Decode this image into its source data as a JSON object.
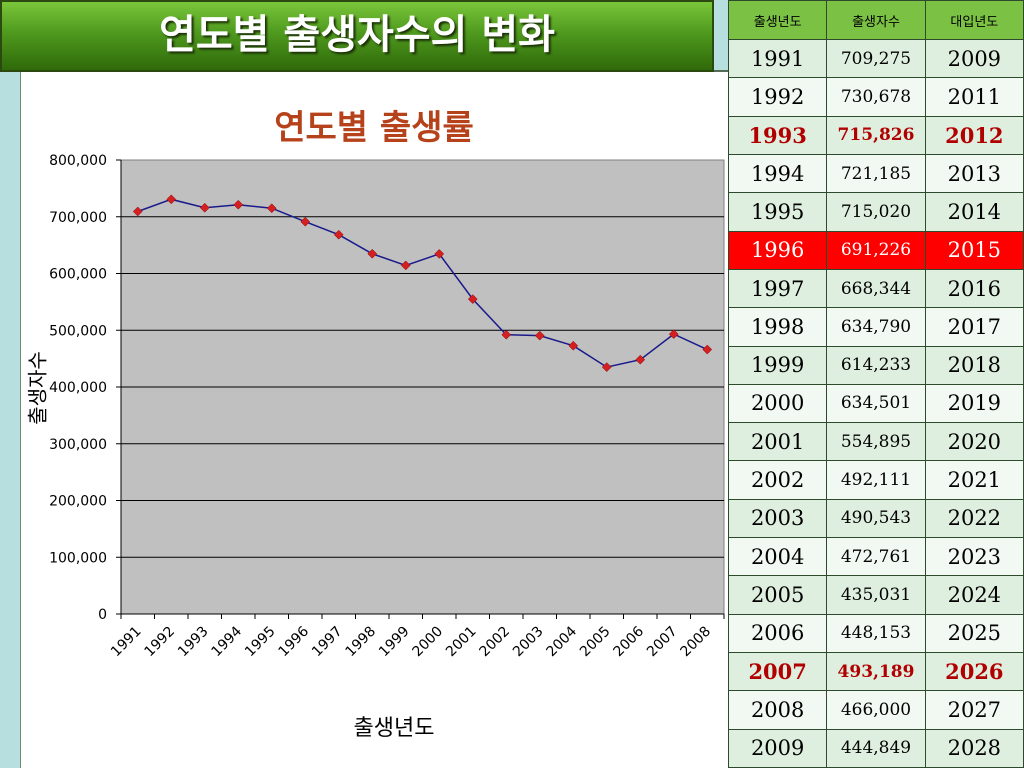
{
  "slide": {
    "title": "연도별 출생자수의 변화"
  },
  "chart_data": {
    "type": "line",
    "title": "연도별 출생률",
    "xlabel": "출생년도",
    "ylabel": "출생자수",
    "categories": [
      "1991",
      "1992",
      "1993",
      "1994",
      "1995",
      "1996",
      "1997",
      "1998",
      "1999",
      "2000",
      "2001",
      "2002",
      "2003",
      "2004",
      "2005",
      "2006",
      "2007",
      "2008"
    ],
    "series": [
      {
        "values": [
          709275,
          730678,
          715826,
          721185,
          715020,
          691226,
          668344,
          634790,
          614233,
          634501,
          554895,
          492111,
          490543,
          472761,
          435031,
          448153,
          493189,
          466000
        ]
      }
    ],
    "ylim": [
      0,
      800000
    ],
    "yticks": [
      "0",
      "100,000",
      "200,000",
      "300,000",
      "400,000",
      "500,000",
      "600,000",
      "700,000",
      "800,000"
    ],
    "grid": true,
    "plot_background": "#c0c0c0",
    "line_color": "#1a1a8c",
    "marker_color": "#d42020"
  },
  "table": {
    "headers": [
      "출생년도",
      "출생자수",
      "대입년도"
    ],
    "rows": [
      [
        "1991",
        "709,275",
        "2009"
      ],
      [
        "1992",
        "730,678",
        "2011"
      ],
      [
        "1993",
        "715,826",
        "2012"
      ],
      [
        "1994",
        "721,185",
        "2013"
      ],
      [
        "1995",
        "715,020",
        "2014"
      ],
      [
        "1996",
        "691,226",
        "2015"
      ],
      [
        "1997",
        "668,344",
        "2016"
      ],
      [
        "1998",
        "634,790",
        "2017"
      ],
      [
        "1999",
        "614,233",
        "2018"
      ],
      [
        "2000",
        "634,501",
        "2019"
      ],
      [
        "2001",
        "554,895",
        "2020"
      ],
      [
        "2002",
        "492,111",
        "2021"
      ],
      [
        "2003",
        "490,543",
        "2022"
      ],
      [
        "2004",
        "472,761",
        "2023"
      ],
      [
        "2005",
        "435,031",
        "2024"
      ],
      [
        "2006",
        "448,153",
        "2025"
      ],
      [
        "2007",
        "493,189",
        "2026"
      ],
      [
        "2008",
        "466,000",
        "2027"
      ],
      [
        "2009",
        "444,849",
        "2028"
      ]
    ],
    "red_text_rows": [
      "1993",
      "2007"
    ],
    "highlight_row": "1996",
    "highlight_color": "#ff0000",
    "header_color": "#7bc144"
  }
}
